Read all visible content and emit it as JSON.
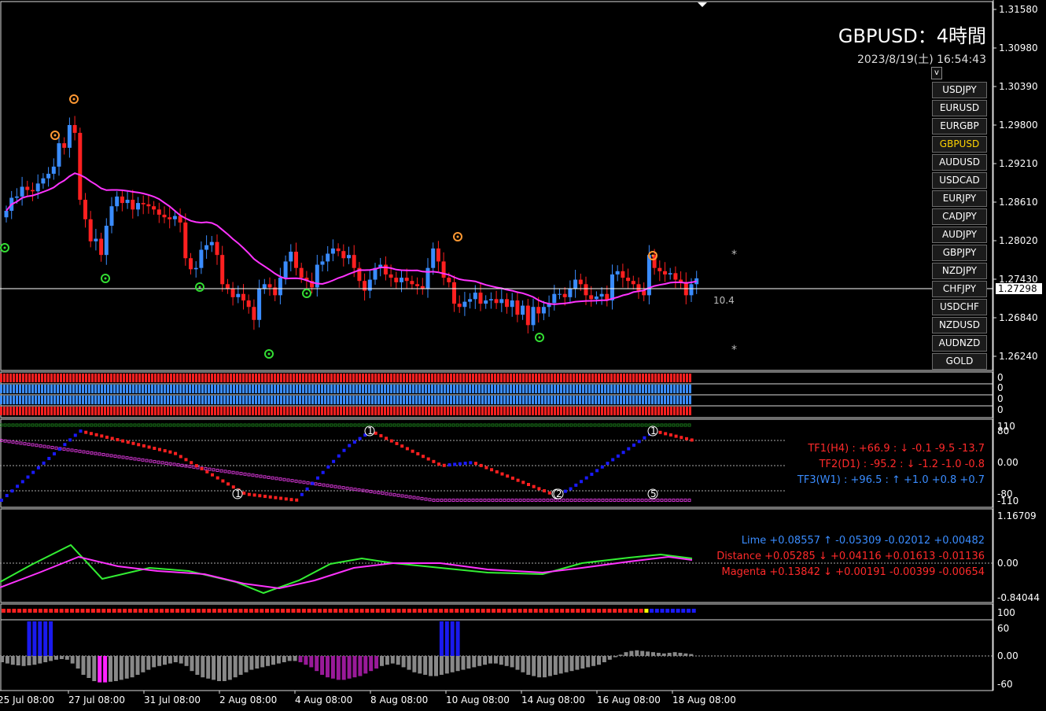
{
  "header": {
    "title": "GBPUSD：4時間",
    "datetime": "2023/8/19(土) 16:54:43"
  },
  "toggle_label": "v",
  "symbols": [
    "USDJPY",
    "EURUSD",
    "EURGBP",
    "GBPUSD",
    "AUDUSD",
    "USDCAD",
    "EURJPY",
    "CADJPY",
    "AUDJPY",
    "GBPJPY",
    "NZDJPY",
    "CHFJPY",
    "USDCHF",
    "NZDUSD",
    "AUDNZD",
    "GOLD"
  ],
  "active_symbol": "GBPUSD",
  "current_price": "1.27298",
  "spread_label": "10.4",
  "price_axis": [
    "1.31580",
    "1.30980",
    "1.30390",
    "1.29800",
    "1.29210",
    "1.28610",
    "1.28020",
    "1.27430",
    "1.26840",
    "1.26240"
  ],
  "strength_axis": [
    "0",
    "0",
    "0",
    "0"
  ],
  "tf_axis": [
    "110",
    "80",
    "0.00",
    "-80",
    "-110"
  ],
  "osc_axis": [
    "1.16709",
    "0.00",
    "-0.84044"
  ],
  "dot_axis": [
    "100"
  ],
  "hist_axis": [
    "60",
    "0.00",
    "-60"
  ],
  "time_axis": [
    "25 Jul 08:00",
    "27 Jul 08:00",
    "31 Jul 08:00",
    "2 Aug 08:00",
    "4 Aug 08:00",
    "8 Aug 08:00",
    "10 Aug 08:00",
    "14 Aug 08:00",
    "16 Aug 08:00",
    "18 Aug 08:00"
  ],
  "tf_lines": [
    {
      "label": "TF1(H4) : +66.9 : ↓ -0.1 -9.5 -13.7",
      "color": "#ff2a2a"
    },
    {
      "label": "TF2(D1) : -95.2 : ↓ -1.2 -1.0 -0.8",
      "color": "#ff2a2a"
    },
    {
      "label": "TF3(W1) : +96.5 : ↑ +1.0 +0.8 +0.7",
      "color": "#3a8cff"
    }
  ],
  "ind_lines": [
    {
      "label": "Lime +0.08557 ↑ -0.05309 -0.02012 +0.00482",
      "color": "#3a8cff"
    },
    {
      "label": "Distance +0.05285 ↓ +0.04116 +0.01613 -0.01136",
      "color": "#ff2a2a"
    },
    {
      "label": "Magenta +0.13842 ↓ +0.00191 -0.00399 -0.00654",
      "color": "#ff2a2a"
    }
  ],
  "colors": {
    "up": "#3a8cff",
    "down": "#ff2020",
    "ma": "#ff33ff",
    "ma_flat": "#888888",
    "lime": "#33ee33",
    "magenta": "#ff33ff",
    "orange": "#ff9933",
    "green": "#33dd33"
  },
  "markers": [
    "1",
    "1",
    "1",
    "2",
    "1",
    "5"
  ],
  "star_glyph": "*",
  "series": {
    "closes": [
      1.2848,
      1.2868,
      1.287,
      1.2885,
      1.288,
      1.2878,
      1.289,
      1.2898,
      1.2905,
      1.2916,
      1.2952,
      1.2945,
      1.298,
      1.2968,
      1.2865,
      1.2835,
      1.2801,
      1.2805,
      1.278,
      1.2825,
      1.2855,
      1.287,
      1.286,
      1.2865,
      1.285,
      1.286,
      1.2858,
      1.2855,
      1.285,
      1.2842,
      1.2838,
      1.2835,
      1.284,
      1.283,
      1.2775,
      1.2758,
      1.276,
      1.2788,
      1.2795,
      1.28,
      1.278,
      1.2735,
      1.2728,
      1.2715,
      1.272,
      1.271,
      1.27,
      1.268,
      1.2728,
      1.2735,
      1.273,
      1.2718,
      1.2745,
      1.277,
      1.2785,
      1.276,
      1.2745,
      1.274,
      1.273,
      1.2765,
      1.277,
      1.2782,
      1.279,
      1.2786,
      1.2775,
      1.278,
      1.276,
      1.274,
      1.2725,
      1.2742,
      1.276,
      1.2765,
      1.275,
      1.2745,
      1.2738,
      1.2745,
      1.274,
      1.2735,
      1.2732,
      1.2728,
      1.276,
      1.279,
      1.277,
      1.2745,
      1.2738,
      1.2705,
      1.27,
      1.2708,
      1.2712,
      1.2722,
      1.2705,
      1.271,
      1.2712,
      1.2706,
      1.2712,
      1.27,
      1.271,
      1.2688,
      1.2702,
      1.2672,
      1.27,
      1.269,
      1.27,
      1.2706,
      1.272,
      1.272,
      1.2715,
      1.2728,
      1.2742,
      1.2735,
      1.2718,
      1.2712,
      1.2716,
      1.272,
      1.271,
      1.275,
      1.2755,
      1.2745,
      1.274,
      1.2735,
      1.2725,
      1.2718,
      1.278,
      1.276,
      1.2755,
      1.275,
      1.2752,
      1.2742,
      1.2738,
      1.2718,
      1.2735,
      1.2744
    ],
    "macd": [
      -10,
      -12,
      -14,
      -15,
      -16,
      -15,
      -14,
      -12,
      -10,
      -8,
      -6,
      -5,
      -6,
      -12,
      -20,
      -30,
      -35,
      -40,
      -42,
      -42,
      -41,
      -40,
      -38,
      -36,
      -34,
      -30,
      -26,
      -22,
      -18,
      -16,
      -14,
      -12,
      -10,
      -12,
      -16,
      -24,
      -30,
      -34,
      -36,
      -38,
      -40,
      -40,
      -38,
      -34,
      -30,
      -26,
      -22,
      -20,
      -18,
      -16,
      -14,
      -12,
      -10,
      -8,
      -8,
      -10,
      -14,
      -18,
      -24,
      -30,
      -34,
      -36,
      -38,
      -38,
      -36,
      -34,
      -32,
      -28,
      -24,
      -20,
      -16,
      -14,
      -12,
      -14,
      -18,
      -22,
      -26,
      -28,
      -30,
      -32,
      -32,
      -30,
      -28,
      -26,
      -24,
      -22,
      -20,
      -18,
      -16,
      -14,
      -12,
      -12,
      -14,
      -16,
      -18,
      -22,
      -26,
      -30,
      -32,
      -34,
      -34,
      -32,
      -30,
      -28,
      -26,
      -24,
      -22,
      -20,
      -18,
      -16,
      -14,
      -10,
      -6,
      -2,
      2,
      6,
      8,
      9,
      8,
      7,
      6,
      5,
      4,
      5,
      6,
      5,
      4,
      3
    ],
    "hist_blue_ranges": [
      [
        5,
        9
      ],
      [
        81,
        84
      ]
    ],
    "hist_magenta_ranges": [
      [
        18,
        19
      ]
    ],
    "hist_purple_ranges": [
      [
        55,
        69
      ]
    ]
  }
}
